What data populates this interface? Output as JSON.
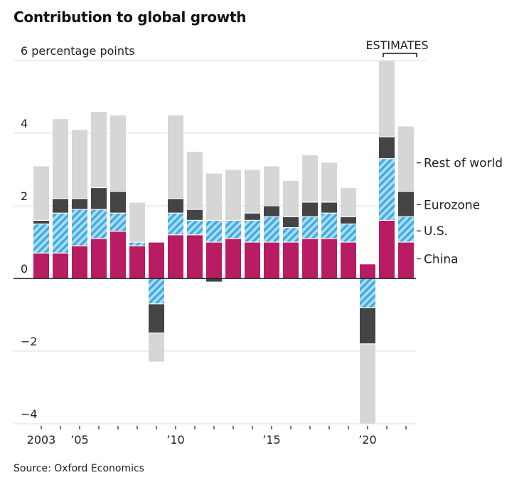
{
  "title": "Contribution to global growth",
  "source": "Source: Oxford Economics",
  "chart_data": {
    "type": "bar",
    "stacked": true,
    "title": "Contribution to global growth",
    "ylabel": "percentage points",
    "ylim": [
      -4,
      6
    ],
    "yticks": [
      -4,
      -2,
      0,
      2,
      4,
      6
    ],
    "ytick_labels": [
      "−4",
      "−2",
      "0",
      "2",
      "4",
      "6 percentage points"
    ],
    "grid": true,
    "categories": [
      "2003",
      "2004",
      "2005",
      "2006",
      "2007",
      "2008",
      "2009",
      "2010",
      "2011",
      "2012",
      "2013",
      "2014",
      "2015",
      "2016",
      "2017",
      "2018",
      "2019",
      "2020",
      "2021",
      "2022"
    ],
    "xtick_labels": [
      {
        "year": "2003",
        "label": "2003"
      },
      {
        "year": "2005",
        "label": "’05"
      },
      {
        "year": "2010",
        "label": "’10"
      },
      {
        "year": "2015",
        "label": "’15"
      },
      {
        "year": "2020",
        "label": "’20"
      }
    ],
    "annotation": {
      "text": "ESTIMATES",
      "years": [
        "2021",
        "2022"
      ]
    },
    "legend_placement": "right, aligned to last bar",
    "series": [
      {
        "name": "China",
        "color": "#b81c62",
        "pattern": "solid",
        "values": [
          0.7,
          0.7,
          0.9,
          1.1,
          1.3,
          0.9,
          1.0,
          1.2,
          1.2,
          1.0,
          1.1,
          1.0,
          1.0,
          1.0,
          1.1,
          1.1,
          1.0,
          0.4,
          1.6,
          1.0
        ]
      },
      {
        "name": "U.S.",
        "color": "#3ea9e0",
        "pattern": "hatched",
        "values": [
          0.8,
          1.1,
          1.0,
          0.8,
          0.5,
          0.1,
          -0.7,
          0.6,
          0.4,
          0.6,
          0.5,
          0.6,
          0.7,
          0.4,
          0.6,
          0.7,
          0.5,
          -0.8,
          1.7,
          0.7
        ]
      },
      {
        "name": "Eurozone",
        "color": "#444346",
        "pattern": "solid",
        "values": [
          0.1,
          0.4,
          0.3,
          0.6,
          0.6,
          0.0,
          -0.8,
          0.4,
          0.3,
          -0.1,
          0.0,
          0.2,
          0.3,
          0.3,
          0.4,
          0.3,
          0.2,
          -1.0,
          0.6,
          0.7
        ]
      },
      {
        "name": "Rest of world",
        "color": "#d6d6d8",
        "pattern": "solid",
        "values": [
          1.5,
          2.2,
          1.9,
          2.1,
          2.1,
          1.1,
          -0.8,
          2.3,
          1.6,
          1.3,
          1.4,
          1.2,
          1.1,
          1.0,
          1.3,
          1.1,
          0.8,
          -2.2,
          2.1,
          1.8
        ]
      }
    ]
  }
}
